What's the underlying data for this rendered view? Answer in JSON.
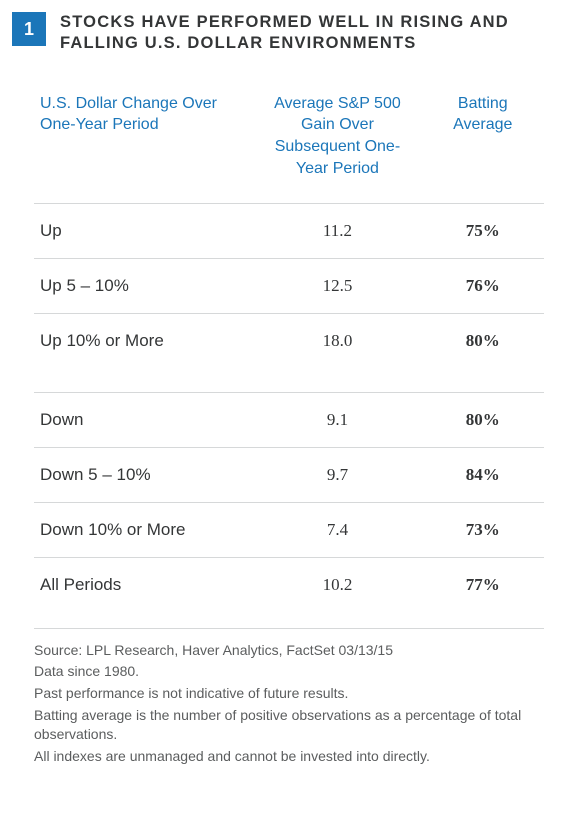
{
  "badge": "1",
  "title": "STOCKS HAVE PERFORMED WELL IN RISING AND FALLING U.S. DOLLAR ENVIRONMENTS",
  "columns": [
    "U.S. Dollar Change Over One-Year Period",
    "Average S&P 500  Gain Over Subsequent One-Year Period",
    "Batting Average"
  ],
  "groups": [
    {
      "rows": [
        {
          "label": "Up",
          "gain": "11.2",
          "avg": "75%"
        },
        {
          "label": "Up 5 – 10%",
          "gain": "12.5",
          "avg": "76%"
        },
        {
          "label": "Up 10% or More",
          "gain": "18.0",
          "avg": "80%"
        }
      ]
    },
    {
      "rows": [
        {
          "label": "Down",
          "gain": "9.1",
          "avg": "80%"
        },
        {
          "label": "Down 5 – 10%",
          "gain": "9.7",
          "avg": "84%"
        },
        {
          "label": "Down 10% or More",
          "gain": "7.4",
          "avg": "73%"
        },
        {
          "label": "All Periods",
          "gain": "10.2",
          "avg": "77%"
        }
      ]
    }
  ],
  "footnotes": [
    "Source: LPL Research, Haver Analytics, FactSet 03/13/15",
    "Data since 1980.",
    "Past performance is not indicative of future results.",
    "Batting average is the number of positive observations as a percentage of total observations.",
    "All indexes are unmanaged and cannot be invested into directly."
  ],
  "colors": {
    "accent": "#1b76b9",
    "text": "#343637",
    "rule": "#d6d8d9",
    "footnote_text": "#5b5d5e",
    "background": "#ffffff"
  }
}
